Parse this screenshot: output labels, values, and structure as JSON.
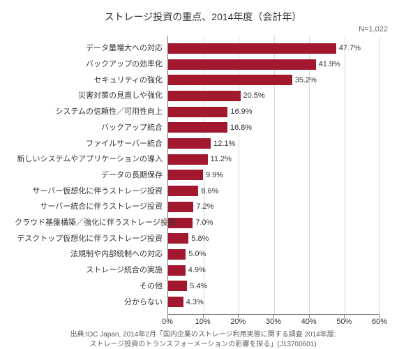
{
  "chart": {
    "type": "bar-horizontal",
    "title": "ストレージ投資の重点、2014年度（会計年）",
    "n_label": "N=1,022",
    "x_max": 60,
    "x_tick_step": 10,
    "x_tick_suffix": "%",
    "bar_color": "#a2192f",
    "grid_color": "#d5d7d9",
    "axis_color": "#7a7e82",
    "background_color": "#ffffff",
    "label_fontsize": 11,
    "title_fontsize": 14,
    "value_fontsize": 11,
    "bars": [
      {
        "label": "データ量増大への対応",
        "value": 47.7
      },
      {
        "label": "バックアップの効率化",
        "value": 41.9
      },
      {
        "label": "セキュリティの強化",
        "value": 35.2
      },
      {
        "label": "災害対策の見直しや強化",
        "value": 20.5
      },
      {
        "label": "システムの信頼性／可用性向上",
        "value": 16.9
      },
      {
        "label": "バックアップ統合",
        "value": 16.8
      },
      {
        "label": "ファイルサーバー統合",
        "value": 12.1
      },
      {
        "label": "新しいシステムやアプリケーションの導入",
        "value": 11.2
      },
      {
        "label": "データの長期保存",
        "value": 9.9
      },
      {
        "label": "サーバー仮想化に伴うストレージ投資",
        "value": 8.6
      },
      {
        "label": "サーバー統合に伴うストレージ投資",
        "value": 7.2
      },
      {
        "label": "クラウド基盤構築／強化に伴うストレージ投資",
        "value": 7.0
      },
      {
        "label": "デスクトップ仮想化に伴うストレージ投資",
        "value": 5.8
      },
      {
        "label": "法規制や内部統制への対応",
        "value": 5.0
      },
      {
        "label": "ストレージ統合の実施",
        "value": 4.9
      },
      {
        "label": "その他",
        "value": 5.4
      },
      {
        "label": "分からない",
        "value": 4.3
      }
    ],
    "source_line1": "出典:IDC Japan, 2014年2月「国内企業のストレージ利用実態に関する調査 2014年版:",
    "source_line2": "ストレージ投資のトランスフォーメーションの影響を探る」(J13700601)"
  }
}
